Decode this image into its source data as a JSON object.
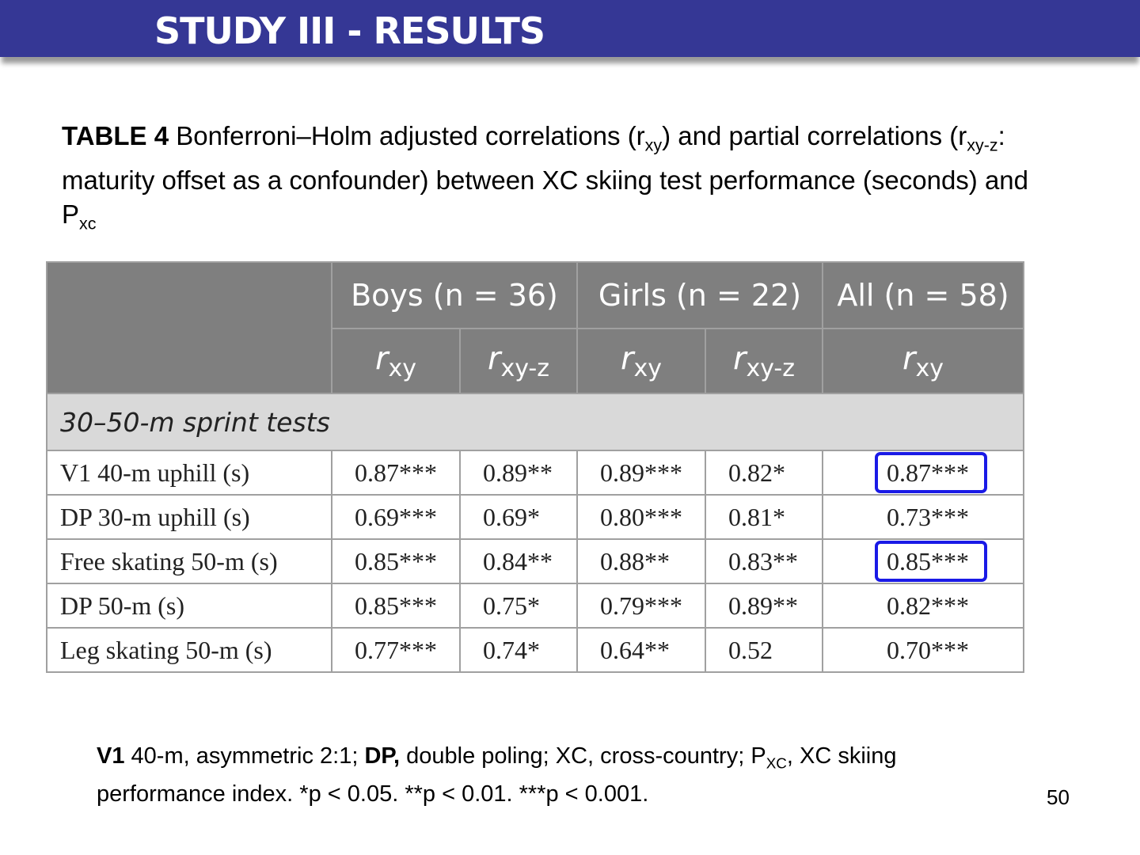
{
  "header": {
    "title": "STUDY III - RESULTS"
  },
  "caption": [
    {
      "text": "TABLE 4",
      "style": "bold"
    },
    {
      "text": " Bonferroni–Holm adjusted correlations (r"
    },
    {
      "text": "xy",
      "style": "sub"
    },
    {
      "text": ") and partial correlations (r"
    },
    {
      "text": "xy-z",
      "style": "sub"
    },
    {
      "text": ": maturity offset as a confounder) between XC skiing test performance (seconds) and P"
    },
    {
      "text": "xc",
      "style": "sub"
    }
  ],
  "table": {
    "groups": [
      {
        "label": "Boys (n = 36)",
        "span": 2
      },
      {
        "label": "Girls (n = 22)",
        "span": 2
      },
      {
        "label": "All (n = 58)",
        "span": 1
      }
    ],
    "subheaders": [
      {
        "symbol": "r",
        "sub": "xy"
      },
      {
        "symbol": "r",
        "sub": "xy-z"
      },
      {
        "symbol": "r",
        "sub": "xy"
      },
      {
        "symbol": "r",
        "sub": "xy-z"
      },
      {
        "symbol": "r",
        "sub": "xy"
      }
    ],
    "section": "30–50-m sprint tests",
    "rows": [
      {
        "label": "V1 40-m uphill (s)",
        "cells": [
          "0.87***",
          "0.89**",
          "0.89***",
          "0.82*",
          "0.87***"
        ]
      },
      {
        "label": "DP 30-m uphill (s)",
        "cells": [
          "0.69***",
          "0.69*",
          "0.80***",
          "0.81*",
          "0.73***"
        ]
      },
      {
        "label": "Free skating 50-m (s)",
        "cells": [
          "0.85***",
          "0.84**",
          "0.88**",
          "0.83**",
          "0.85***"
        ]
      },
      {
        "label": "DP 50-m (s)",
        "cells": [
          "0.85***",
          "0.75*",
          "0.79***",
          "0.89**",
          "0.82***"
        ]
      },
      {
        "label": "Leg skating 50-m (s)",
        "cells": [
          "0.77***",
          "0.74*",
          "0.64**",
          "0.52",
          "0.70***"
        ]
      }
    ],
    "highlighted": [
      [
        0,
        4
      ],
      [
        2,
        4
      ]
    ]
  },
  "footnote": [
    {
      "text": "V1",
      "style": "bold"
    },
    {
      "text": " 40-m, asymmetric 2:1; "
    },
    {
      "text": "DP,",
      "style": "bold"
    },
    {
      "text": " double poling; XC, cross-country; P"
    },
    {
      "text": "XC",
      "style": "sub"
    },
    {
      "text": ", XC skiing performance index. *p < 0.05. **p < 0.01. ***p < 0.001."
    }
  ],
  "page_number": "50"
}
